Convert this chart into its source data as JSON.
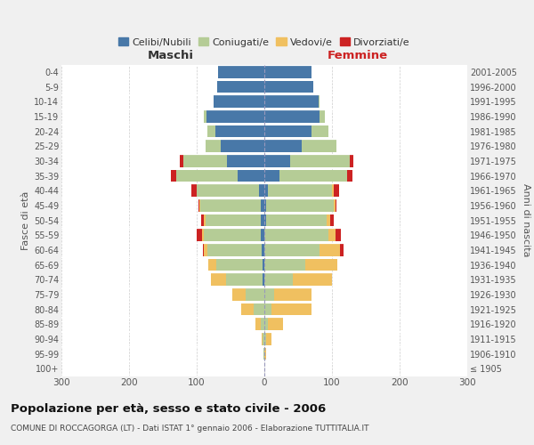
{
  "age_groups": [
    "100+",
    "95-99",
    "90-94",
    "85-89",
    "80-84",
    "75-79",
    "70-74",
    "65-69",
    "60-64",
    "55-59",
    "50-54",
    "45-49",
    "40-44",
    "35-39",
    "30-34",
    "25-29",
    "20-24",
    "15-19",
    "10-14",
    "5-9",
    "0-4"
  ],
  "birth_years": [
    "≤ 1905",
    "1906-1910",
    "1911-1915",
    "1916-1920",
    "1921-1925",
    "1926-1930",
    "1931-1935",
    "1936-1940",
    "1941-1945",
    "1946-1950",
    "1951-1955",
    "1956-1960",
    "1961-1965",
    "1966-1970",
    "1971-1975",
    "1976-1980",
    "1981-1985",
    "1986-1990",
    "1991-1995",
    "1996-2000",
    "2001-2005"
  ],
  "male_celibi": [
    0,
    0,
    0,
    0,
    0,
    0,
    2,
    3,
    4,
    5,
    5,
    5,
    8,
    40,
    55,
    65,
    72,
    85,
    75,
    70,
    68
  ],
  "male_coniugati": [
    0,
    1,
    2,
    5,
    16,
    28,
    55,
    68,
    80,
    85,
    82,
    90,
    92,
    90,
    65,
    22,
    12,
    4,
    0,
    0,
    0
  ],
  "male_vedovi": [
    0,
    0,
    2,
    8,
    18,
    20,
    22,
    12,
    5,
    2,
    2,
    1,
    0,
    0,
    0,
    0,
    0,
    0,
    0,
    0,
    0
  ],
  "male_divorziati": [
    0,
    0,
    0,
    0,
    0,
    0,
    0,
    0,
    2,
    8,
    5,
    2,
    8,
    8,
    5,
    0,
    0,
    0,
    0,
    0,
    0
  ],
  "fem_nubili": [
    0,
    0,
    0,
    0,
    0,
    0,
    0,
    0,
    0,
    0,
    2,
    3,
    5,
    22,
    38,
    55,
    70,
    82,
    80,
    72,
    70
  ],
  "fem_coniugate": [
    0,
    0,
    2,
    5,
    10,
    15,
    42,
    60,
    82,
    95,
    90,
    100,
    95,
    100,
    88,
    52,
    25,
    8,
    2,
    0,
    0
  ],
  "fem_vedove": [
    0,
    3,
    8,
    22,
    60,
    55,
    58,
    48,
    30,
    10,
    5,
    2,
    2,
    0,
    0,
    0,
    0,
    0,
    0,
    0,
    0
  ],
  "fem_divorziate": [
    0,
    0,
    0,
    0,
    0,
    0,
    0,
    0,
    5,
    8,
    5,
    2,
    8,
    8,
    5,
    0,
    0,
    0,
    0,
    0,
    0
  ],
  "color_celibi": "#4878a8",
  "color_coniugati": "#b5cc96",
  "color_vedovi": "#f0c060",
  "color_divorziati": "#cc2222",
  "legend_labels": [
    "Celibi/Nubili",
    "Coniugati/e",
    "Vedovi/e",
    "Divorziati/e"
  ],
  "title": "Popolazione per età, sesso e stato civile - 2006",
  "subtitle": "COMUNE DI ROCCAGORGA (LT) - Dati ISTAT 1° gennaio 2006 - Elaborazione TUTTITALIA.IT",
  "label_maschi": "Maschi",
  "label_femmine": "Femmine",
  "ylabel_left": "Fasce di età",
  "ylabel_right": "Anni di nascita",
  "xlim": 300,
  "bg_color": "#f0f0f0",
  "plot_bg": "#ffffff",
  "maschi_color": "#333333",
  "femmine_color": "#cc2222"
}
